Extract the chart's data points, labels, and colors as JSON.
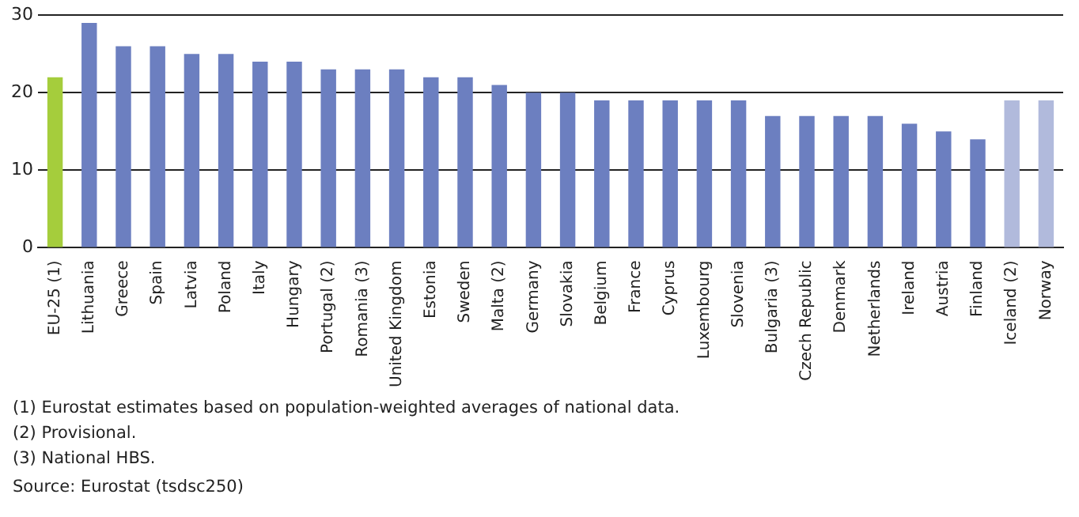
{
  "chart_data": {
    "type": "bar",
    "categories": [
      "EU-25 (1)",
      "Lithuania",
      "Greece",
      "Spain",
      "Latvia",
      "Poland",
      "Italy",
      "Hungary",
      "Portugal (2)",
      "Romania (3)",
      "United Kingdom",
      "Estonia",
      "Sweden",
      "Malta (2)",
      "Germany",
      "Slovakia",
      "Belgium",
      "France",
      "Cyprus",
      "Luxembourg",
      "Slovenia",
      "Bulgaria (3)",
      "Czech Republic",
      "Denmark",
      "Netherlands",
      "Ireland",
      "Austria",
      "Finland",
      "Iceland (2)",
      "Norway"
    ],
    "values": [
      22,
      29,
      26,
      26,
      25,
      25,
      24,
      24,
      23,
      23,
      23,
      22,
      22,
      21,
      20,
      20,
      19,
      19,
      19,
      19,
      19,
      17,
      17,
      17,
      17,
      16,
      15,
      14,
      19,
      19
    ],
    "colors": [
      "#a5cd3c",
      "#6c7fc0",
      "#6c7fc0",
      "#6c7fc0",
      "#6c7fc0",
      "#6c7fc0",
      "#6c7fc0",
      "#6c7fc0",
      "#6c7fc0",
      "#6c7fc0",
      "#6c7fc0",
      "#6c7fc0",
      "#6c7fc0",
      "#6c7fc0",
      "#6c7fc0",
      "#6c7fc0",
      "#6c7fc0",
      "#6c7fc0",
      "#6c7fc0",
      "#6c7fc0",
      "#6c7fc0",
      "#6c7fc0",
      "#6c7fc0",
      "#6c7fc0",
      "#6c7fc0",
      "#6c7fc0",
      "#6c7fc0",
      "#6c7fc0",
      "#b1badc",
      "#b1badc"
    ],
    "ylim": [
      0,
      30
    ],
    "yticks": [
      0,
      10,
      20,
      30
    ],
    "grid": "y",
    "legend": false,
    "annotations": [
      "(1) Eurostat estimates based on population-weighted averages of national data.",
      "(2) Provisional.",
      "(3) National HBS.",
      "Source: Eurostat (tsdsc250)"
    ]
  }
}
